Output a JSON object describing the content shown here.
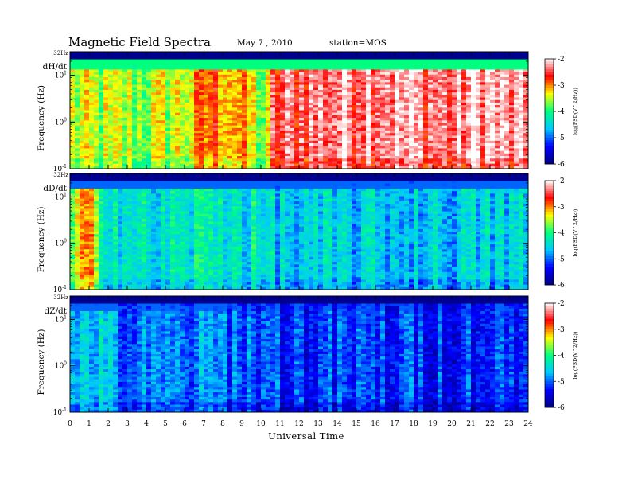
{
  "header": {
    "title": "Magnetic  Field  Spectra",
    "date": "May 7  , 2010",
    "station": "station=MOS"
  },
  "chart_data": {
    "type": "heatmap",
    "xlabel": "Universal Time",
    "xlim": [
      0,
      24
    ],
    "x_ticks": [
      "0",
      "1",
      "2",
      "3",
      "4",
      "5",
      "6",
      "7",
      "8",
      "9",
      "10",
      "11",
      "12",
      "13",
      "14",
      "15",
      "16",
      "17",
      "18",
      "19",
      "20",
      "21",
      "22",
      "23",
      "24"
    ],
    "y_scale": "log",
    "ylabel": "Frequency  (Hz)",
    "ylim_hz": [
      0.1,
      32
    ],
    "y_top_label": "32Hz",
    "y_tick_values": [
      0.1,
      1,
      10
    ],
    "y_tick_labels": [
      {
        "base": "10",
        "exp": "-1"
      },
      {
        "base": "10",
        "exp": "0"
      },
      {
        "base": "10",
        "exp": "1"
      }
    ],
    "colorbar": {
      "label": "log(PSD(V^2/Hz))",
      "range": [
        -6,
        -2
      ],
      "ticks": [
        "-2",
        "-3",
        "-4",
        "-5",
        "-6"
      ],
      "colors": [
        "#000080",
        "#0000ff",
        "#00c8ff",
        "#00ff80",
        "#ffff00",
        "#ff0000",
        "#ffffff"
      ]
    },
    "panels": [
      {
        "name": "dH/dt",
        "note": "high power (red/white) after ~10.5 UT",
        "profile_ut": [
          0,
          2,
          4,
          6,
          7.5,
          9,
          10.3,
          10.6,
          12,
          16,
          20,
          21.5,
          24
        ],
        "profile_level": [
          0.62,
          0.6,
          0.6,
          0.65,
          0.78,
          0.72,
          0.55,
          0.85,
          0.9,
          0.96,
          0.9,
          0.97,
          0.9
        ]
      },
      {
        "name": "dD/dt",
        "note": "moderate power early (0-2 UT), mostly blue afterwards",
        "profile_ut": [
          0,
          1,
          2,
          4,
          8,
          12,
          18,
          24
        ],
        "profile_level": [
          0.55,
          0.72,
          0.45,
          0.38,
          0.44,
          0.34,
          0.35,
          0.36
        ]
      },
      {
        "name": "dZ/dt",
        "note": "low power throughout",
        "profile_ut": [
          0,
          1,
          3,
          8,
          12,
          24
        ],
        "profile_level": [
          0.3,
          0.38,
          0.24,
          0.27,
          0.2,
          0.2
        ]
      }
    ]
  }
}
